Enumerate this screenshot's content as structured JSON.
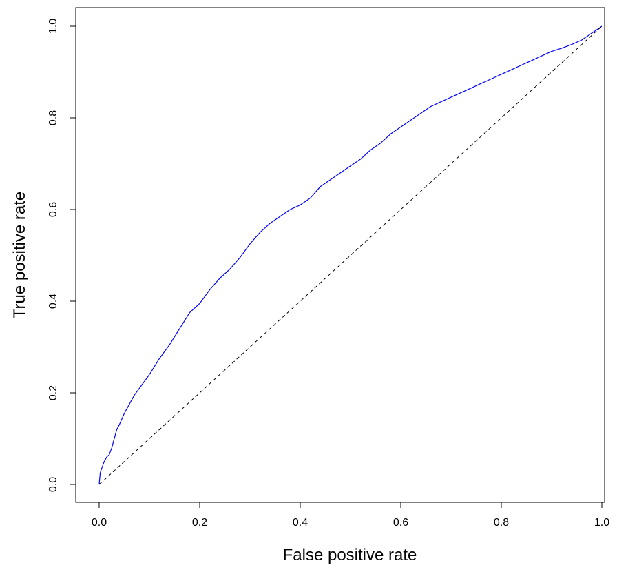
{
  "chart_data": {
    "type": "line",
    "title": "",
    "xlabel": "False positive rate",
    "ylabel": "True positive rate",
    "xlim": [
      0.0,
      1.0
    ],
    "ylim": [
      0.0,
      1.0
    ],
    "xticks": [
      "0.0",
      "0.2",
      "0.4",
      "0.6",
      "0.8",
      "1.0"
    ],
    "yticks": [
      "0.0",
      "0.2",
      "0.4",
      "0.6",
      "0.8",
      "1.0"
    ],
    "grid": false,
    "legend": "none",
    "series": [
      {
        "color": "#0000ff",
        "style": "solid",
        "x": [
          0.0,
          0.002,
          0.005,
          0.01,
          0.015,
          0.02,
          0.025,
          0.03,
          0.035,
          0.04,
          0.05,
          0.06,
          0.07,
          0.08,
          0.09,
          0.1,
          0.12,
          0.14,
          0.16,
          0.18,
          0.2,
          0.22,
          0.24,
          0.26,
          0.28,
          0.3,
          0.32,
          0.34,
          0.36,
          0.38,
          0.4,
          0.42,
          0.44,
          0.46,
          0.48,
          0.5,
          0.52,
          0.54,
          0.56,
          0.58,
          0.6,
          0.62,
          0.64,
          0.66,
          0.68,
          0.7,
          0.72,
          0.74,
          0.76,
          0.78,
          0.8,
          0.82,
          0.84,
          0.86,
          0.88,
          0.9,
          0.92,
          0.94,
          0.96,
          0.98,
          1.0
        ],
        "y": [
          0.0,
          0.025,
          0.035,
          0.05,
          0.06,
          0.065,
          0.08,
          0.1,
          0.12,
          0.13,
          0.155,
          0.175,
          0.195,
          0.21,
          0.225,
          0.24,
          0.275,
          0.305,
          0.34,
          0.375,
          0.395,
          0.425,
          0.45,
          0.47,
          0.495,
          0.525,
          0.55,
          0.57,
          0.585,
          0.6,
          0.61,
          0.625,
          0.65,
          0.665,
          0.68,
          0.695,
          0.71,
          0.73,
          0.745,
          0.765,
          0.78,
          0.795,
          0.81,
          0.825,
          0.835,
          0.845,
          0.855,
          0.865,
          0.875,
          0.885,
          0.895,
          0.905,
          0.915,
          0.925,
          0.935,
          0.945,
          0.952,
          0.96,
          0.97,
          0.985,
          1.0
        ]
      },
      {
        "color": "#000000",
        "style": "dashed",
        "x": [
          0.0,
          1.0
        ],
        "y": [
          0.0,
          1.0
        ]
      }
    ]
  }
}
